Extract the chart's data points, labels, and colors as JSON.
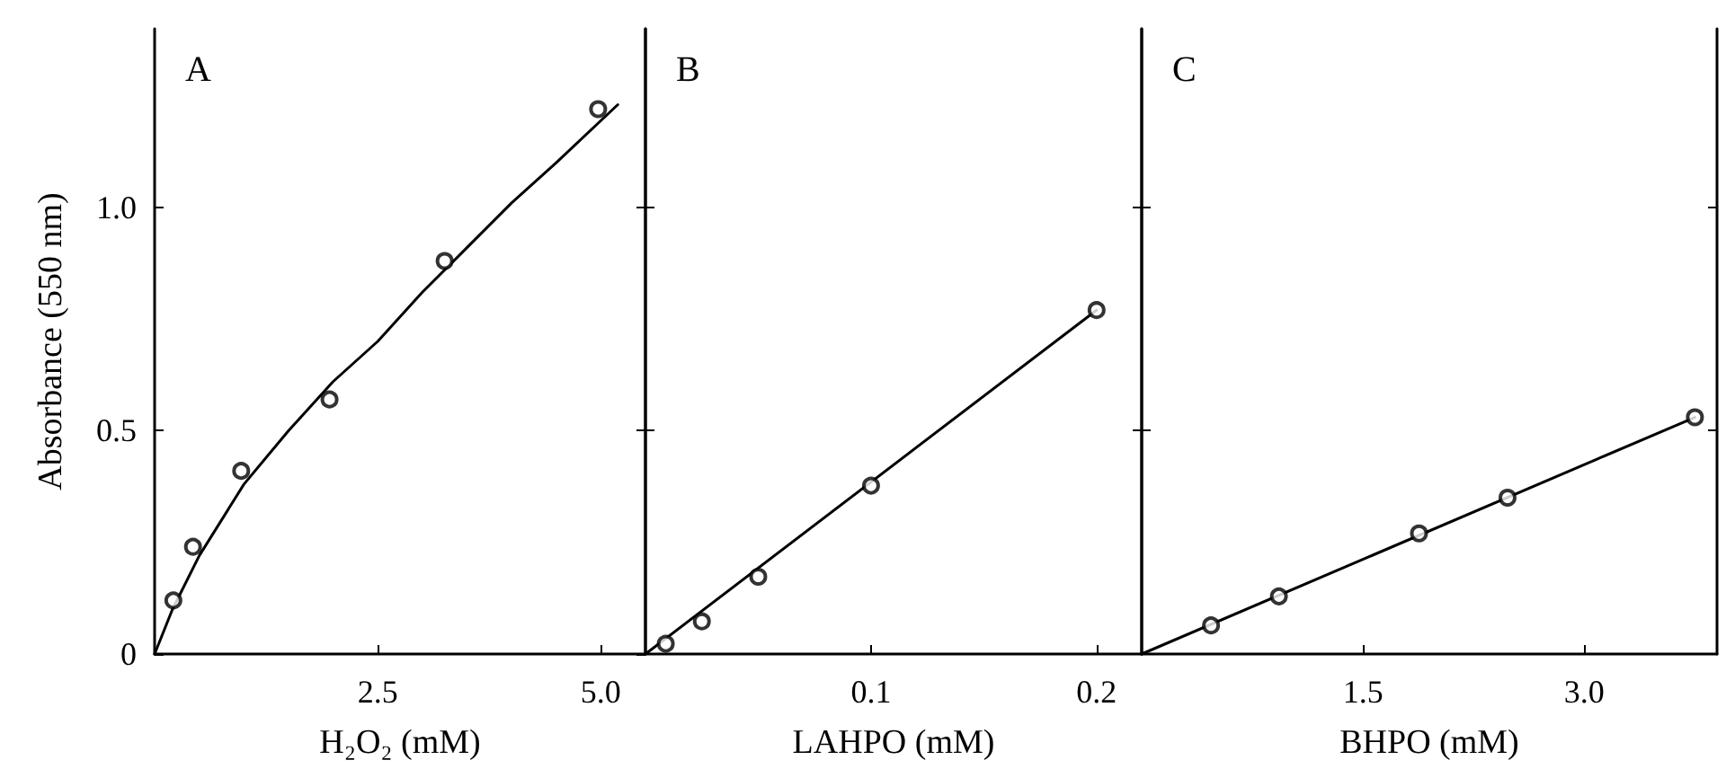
{
  "chart_data": [
    {
      "type": "scatter",
      "title": "A",
      "xlabel": "H₂O₂ (mM)",
      "ylabel": "Absorbance (550 nm)",
      "xlim": [
        0,
        5.5
      ],
      "xticks": [
        2.5,
        {
          "value": 5,
          "label": "5.0"
        }
      ],
      "ylim": [
        0,
        1.4
      ],
      "yticks": [
        0,
        0.5,
        {
          "value": 1,
          "label": "1.0"
        }
      ],
      "marker": "circle",
      "series": [
        {
          "color": "#000000",
          "x": [
            0.21,
            0.43,
            0.97,
            1.96,
            3.25,
            4.97
          ],
          "values": [
            0.12,
            0.24,
            0.41,
            0.57,
            0.88,
            1.22
          ]
        },
        {
          "type": "line",
          "color": "#000000",
          "marker": "none",
          "line_style": "solid",
          "x": [
            0,
            0.2,
            0.5,
            1,
            1.5,
            2,
            2.5,
            3,
            3.5,
            4,
            4.5,
            5.19
          ],
          "values": [
            0,
            0.1,
            0.22,
            0.38,
            0.5,
            0.61,
            0.7,
            0.81,
            0.91,
            1.01,
            1.1,
            1.23
          ]
        }
      ]
    },
    {
      "type": "scatter",
      "title": "B",
      "xlabel": "LAHPO (mM)",
      "xlim": [
        0,
        0.22
      ],
      "xticks": [
        0.1,
        0.2
      ],
      "ylim": [
        0,
        1.4
      ],
      "yticks": [
        0.5,
        1
      ],
      "tick_labels": "x",
      "marker": "circle",
      "series": [
        {
          "color": "#000000",
          "x": [
            0.009,
            0.025,
            0.05,
            0.1,
            0.2
          ],
          "values": [
            0.023,
            0.073,
            0.173,
            0.377,
            0.77
          ]
        },
        {
          "type": "line",
          "color": "#000000",
          "marker": "none",
          "line_style": "solid",
          "x": [
            0,
            0.2
          ],
          "values": [
            0,
            0.77
          ]
        }
      ]
    },
    {
      "type": "scatter",
      "title": "C",
      "xlabel": "BHPO (mM)",
      "xlim": [
        0,
        3.9
      ],
      "xticks": [
        1.5,
        {
          "value": 3,
          "label": "3.0"
        }
      ],
      "ylim": [
        0,
        1.4
      ],
      "yticks": [
        0.5,
        1
      ],
      "tick_labels": "x",
      "marker": "circle",
      "series": [
        {
          "color": "#000000",
          "x": [
            0.47,
            0.93,
            1.88,
            2.48,
            3.75
          ],
          "values": [
            0.064,
            0.129,
            0.27,
            0.35,
            0.53
          ]
        },
        {
          "type": "line",
          "color": "#000000",
          "marker": "none",
          "line_style": "solid",
          "x": [
            0,
            3.75
          ],
          "values": [
            0,
            0.53
          ]
        }
      ]
    }
  ]
}
